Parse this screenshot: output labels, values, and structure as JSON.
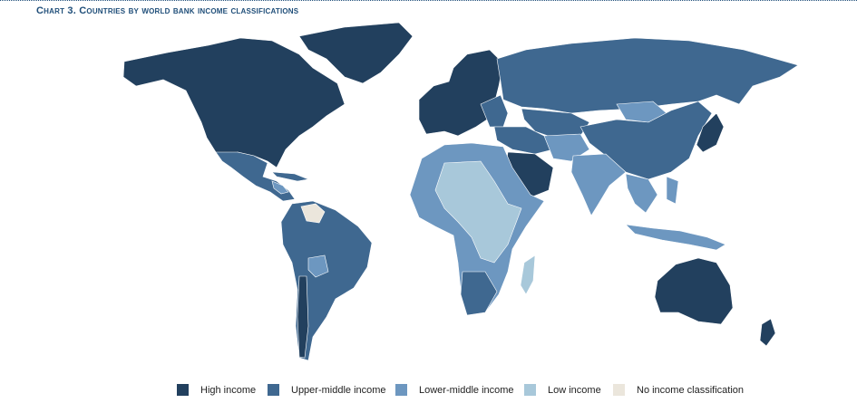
{
  "header": {
    "title": "Chart 3.  Countries by world bank income classifications"
  },
  "legend": [
    {
      "label": "High income",
      "color": "#22405e"
    },
    {
      "label": "Upper-middle income",
      "color": "#3f6890"
    },
    {
      "label": "Lower-middle income",
      "color": "#6d97c0"
    },
    {
      "label": "Low income",
      "color": "#a8c8da"
    },
    {
      "label": "No income classification",
      "color": "#ebe6dc"
    }
  ]
}
